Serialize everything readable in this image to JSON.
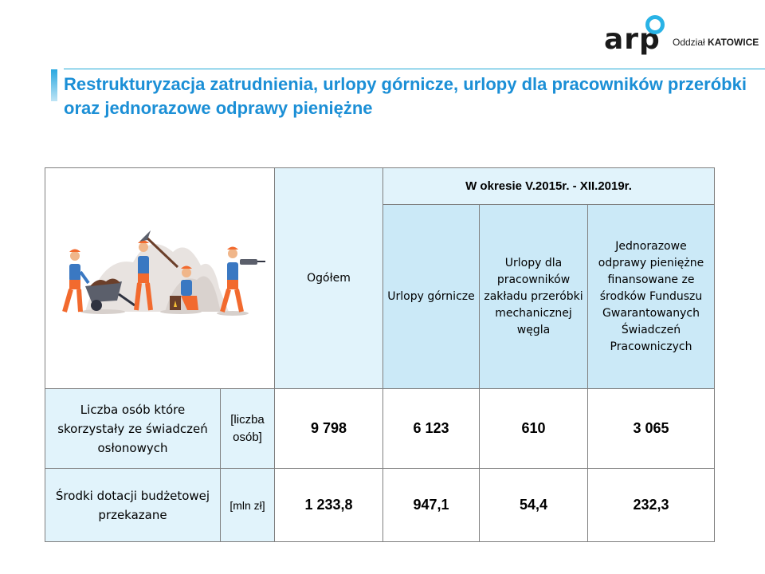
{
  "logo": {
    "brand": "arp",
    "branch_prefix": "Oddział",
    "branch_name": "KATOWICE"
  },
  "title": "Restrukturyzacja zatrudnienia, urlopy górnicze, urlopy dla pracowników przeróbki oraz jednorazowe odprawy pieniężne",
  "table": {
    "total_header": "Ogółem",
    "period_header": "W okresie V.2015r. - XII.2019r.",
    "col_headers": [
      "Urlopy górnicze",
      "Urlopy dla pracowników zakładu przeróbki mechanicznej węgla",
      "Jednorazowe odprawy pieniężne finansowane ze środków Funduszu Gwarantowanych Świadczeń Pracowniczych"
    ],
    "rows": [
      {
        "label": "Liczba osób które skorzystały ze świadczeń osłonowych",
        "unit": "[liczba osób]",
        "values": [
          "9 798",
          "6 123",
          "610",
          "3 065"
        ]
      },
      {
        "label": "Środki dotacji budżetowej przekazane",
        "unit": "[mln zł]",
        "values": [
          "1 233,8",
          "947,1",
          "54,4",
          "232,3"
        ]
      }
    ]
  },
  "colors": {
    "title": "#1b8fd6",
    "header_light": "#e1f3fb",
    "header_mid": "#cbe9f7",
    "worker_orange": "#f26a2e",
    "worker_blue": "#3a78c2"
  },
  "icons": [
    "miners-illustration",
    "logo-ring-icon"
  ]
}
